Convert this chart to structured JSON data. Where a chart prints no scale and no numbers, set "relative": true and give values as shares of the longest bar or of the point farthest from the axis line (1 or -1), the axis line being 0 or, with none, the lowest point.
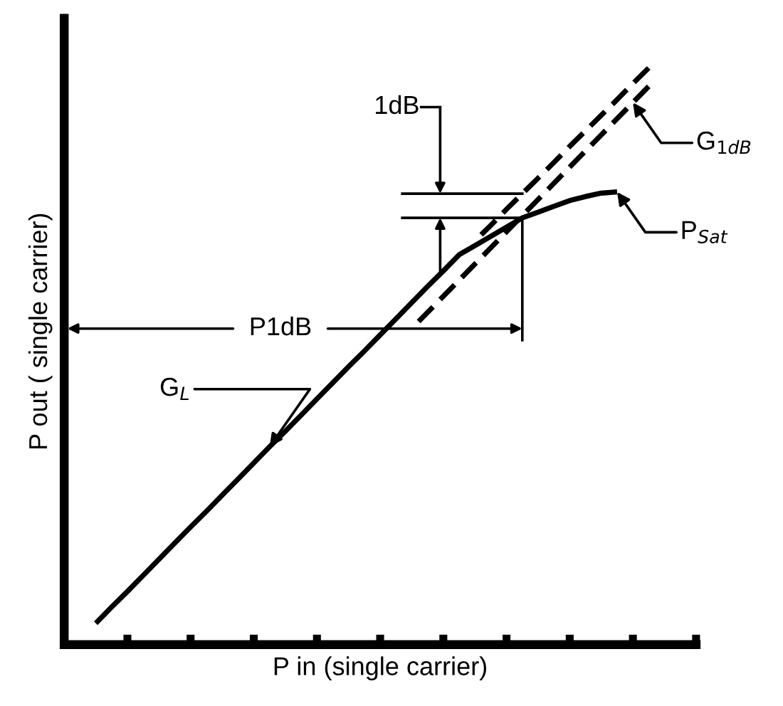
{
  "chart_data": {
    "type": "line",
    "relative": true,
    "xlabel": "P in (single carrier)",
    "ylabel": "P out ( single carrier)",
    "tick_labels": false,
    "grid": false,
    "legend": false,
    "categories": [
      null,
      null,
      null,
      null,
      null,
      null,
      null,
      null,
      null,
      null,
      null,
      null,
      null,
      null,
      null,
      null,
      null,
      null,
      null,
      null,
      null,
      null,
      null,
      null,
      null,
      null,
      null,
      null,
      null,
      null,
      null,
      null,
      null,
      null,
      null,
      null,
      null,
      null,
      null,
      null
    ],
    "series": [
      {
        "color": "#000000",
        "line_style": "solid",
        "values": [
          null,
          0.037,
          0.065,
          0.092,
          0.12,
          0.148,
          0.176,
          0.204,
          0.231,
          0.259,
          0.287,
          0.315,
          0.343,
          0.37,
          0.398,
          0.426,
          0.454,
          0.482,
          0.509,
          0.537,
          0.565,
          0.593,
          0.621,
          0.648,
          0.676,
          0.692,
          0.708,
          0.724,
          0.74,
          0.75,
          0.76,
          0.77,
          0.777,
          0.783,
          0.785,
          null,
          null,
          null,
          null,
          null
        ]
      },
      {
        "color": "#000000",
        "line_style": "dashed",
        "values": [
          null,
          null,
          null,
          null,
          null,
          null,
          null,
          null,
          null,
          null,
          null,
          null,
          null,
          null,
          null,
          null,
          null,
          null,
          null,
          null,
          null,
          null,
          null,
          null,
          null,
          0.7,
          0.727,
          0.755,
          0.782,
          0.809,
          0.836,
          0.864,
          0.891,
          0.918,
          0.945,
          0.973,
          1.0,
          null,
          null,
          null
        ]
      },
      {
        "color": "#000000",
        "line_style": "dashed",
        "values": [
          null,
          null,
          null,
          null,
          null,
          null,
          null,
          null,
          null,
          null,
          null,
          null,
          null,
          null,
          null,
          null,
          null,
          null,
          null,
          null,
          null,
          0.548,
          0.576,
          0.604,
          0.632,
          0.66,
          0.688,
          0.716,
          0.744,
          0.772,
          0.8,
          0.828,
          0.856,
          0.884,
          0.912,
          0.94,
          0.968,
          null,
          null,
          null
        ]
      }
    ],
    "annotations": [
      "G$_{L}$",
      "G$_{1dB}$",
      "P$_{Sat}$",
      "P1dB",
      "1dB"
    ]
  }
}
